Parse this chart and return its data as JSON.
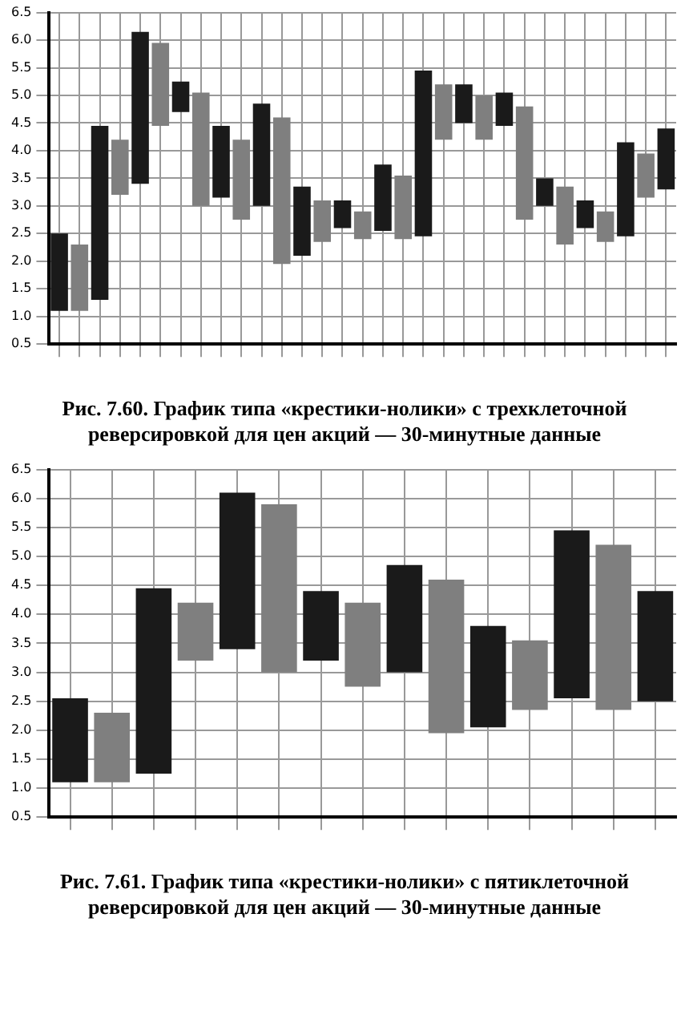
{
  "chart_data": [
    {
      "type": "bar",
      "title": "Рис. 7.60. График типа «крестики-нолики» с трехклеточной реверсировкой для цен акций — 30-минутные данные",
      "categories": [
        null,
        null,
        null,
        null,
        null,
        null,
        null,
        null,
        null,
        null,
        null,
        null,
        null,
        null,
        null,
        null,
        null,
        null,
        null,
        null,
        null,
        null,
        null,
        null,
        null,
        null,
        null,
        null,
        null,
        null,
        null
      ],
      "base": [
        1.1,
        1.1,
        1.3,
        3.2,
        3.4,
        4.45,
        4.7,
        3.0,
        3.15,
        2.75,
        3.0,
        1.95,
        2.1,
        2.35,
        2.6,
        2.4,
        2.55,
        2.4,
        2.45,
        4.2,
        4.5,
        4.2,
        4.45,
        2.75,
        3.0,
        2.3,
        2.6,
        2.35,
        2.45,
        3.15,
        3.3
      ],
      "values": [
        1.4,
        1.2,
        3.15,
        1.0,
        2.75,
        1.5,
        0.55,
        2.05,
        1.3,
        1.45,
        1.85,
        2.65,
        1.25,
        0.75,
        0.5,
        0.5,
        1.2,
        1.15,
        3.0,
        1.0,
        0.7,
        0.8,
        0.6,
        2.05,
        0.5,
        1.05,
        0.5,
        0.55,
        1.7,
        0.8,
        1.1
      ],
      "colors": [
        "#1a1a1a",
        "#7f7f7f",
        "#1a1a1a",
        "#7f7f7f",
        "#1a1a1a",
        "#7f7f7f",
        "#1a1a1a",
        "#7f7f7f",
        "#1a1a1a",
        "#7f7f7f",
        "#1a1a1a",
        "#7f7f7f",
        "#1a1a1a",
        "#7f7f7f",
        "#1a1a1a",
        "#7f7f7f",
        "#1a1a1a",
        "#7f7f7f",
        "#1a1a1a",
        "#7f7f7f",
        "#1a1a1a",
        "#7f7f7f",
        "#1a1a1a",
        "#7f7f7f",
        "#1a1a1a",
        "#7f7f7f",
        "#1a1a1a",
        "#7f7f7f",
        "#1a1a1a",
        "#7f7f7f",
        "#1a1a1a"
      ],
      "ylim": [
        0.5,
        6.5
      ],
      "yticks": [
        0.5,
        {
          "value": 1,
          "label": "1.0"
        },
        1.5,
        {
          "value": 2,
          "label": "2.0"
        },
        2.5,
        {
          "value": 3,
          "label": "3.0"
        },
        3.5,
        {
          "value": 4,
          "label": "4.0"
        },
        4.5,
        {
          "value": 5,
          "label": "5.0"
        },
        5.5,
        {
          "value": 6,
          "label": "6.0"
        },
        6.5
      ],
      "grid": true
    },
    {
      "type": "bar",
      "title": "Рис. 7.61. График типа «крестики-нолики» с пятиклеточной реверсировкой для цен акций — 30-минутные данные",
      "categories": [
        null,
        null,
        null,
        null,
        null,
        null,
        null,
        null,
        null,
        null,
        null,
        null,
        null,
        null,
        null
      ],
      "base": [
        1.1,
        1.1,
        1.25,
        3.2,
        3.4,
        3.0,
        3.2,
        2.75,
        3.0,
        1.95,
        2.05,
        2.35,
        2.55,
        2.35,
        2.5
      ],
      "values": [
        1.45,
        1.2,
        3.2,
        1.0,
        2.7,
        2.9,
        1.2,
        1.45,
        1.85,
        2.65,
        1.75,
        1.2,
        2.9,
        2.85,
        1.9
      ],
      "colors": [
        "#1a1a1a",
        "#7f7f7f",
        "#1a1a1a",
        "#7f7f7f",
        "#1a1a1a",
        "#7f7f7f",
        "#1a1a1a",
        "#7f7f7f",
        "#1a1a1a",
        "#7f7f7f",
        "#1a1a1a",
        "#7f7f7f",
        "#1a1a1a",
        "#7f7f7f",
        "#1a1a1a"
      ],
      "ylim": [
        0.5,
        6.5
      ],
      "yticks": [
        0.5,
        {
          "value": 1,
          "label": "1.0"
        },
        1.5,
        {
          "value": 2,
          "label": "2.0"
        },
        2.5,
        {
          "value": 3,
          "label": "3.0"
        },
        3.5,
        {
          "value": 4,
          "label": "4.0"
        },
        4.5,
        {
          "value": 5,
          "label": "5.0"
        },
        5.5,
        {
          "value": 6,
          "label": "6.0"
        },
        6.5
      ],
      "grid": true
    }
  ]
}
